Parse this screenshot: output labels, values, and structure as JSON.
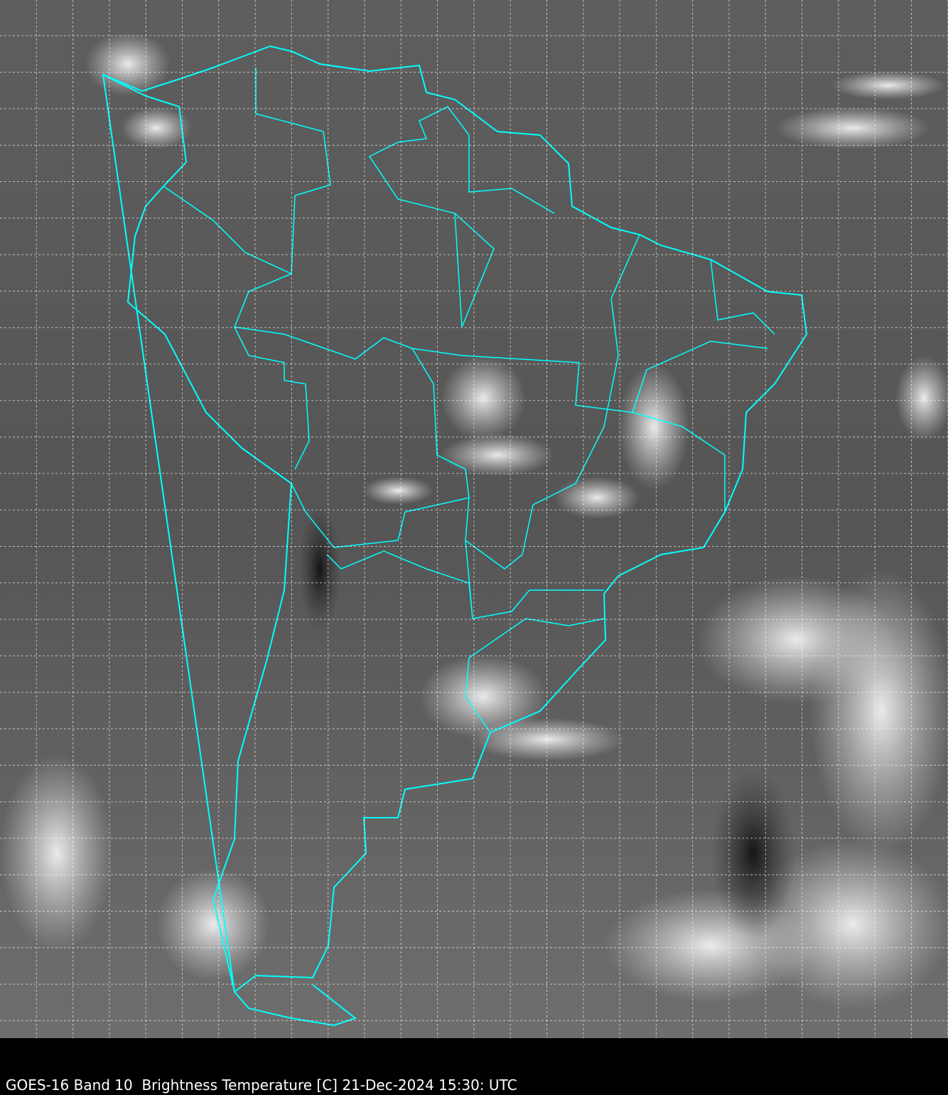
{
  "caption": "GOES-16 Band 10  Brightness Temperature [C] 21-Dec-2024 15:30: UTC",
  "map": {
    "satellite": "GOES-16",
    "band": "Band 10",
    "variable": "Brightness Temperature [C]",
    "date": "21-Dec-2024",
    "time": "15:30 UTC",
    "region": "South America",
    "colormap": "grayscale",
    "border_color": "#00ffff",
    "grid_color": "#ffffff",
    "grid_style": "dashed"
  }
}
